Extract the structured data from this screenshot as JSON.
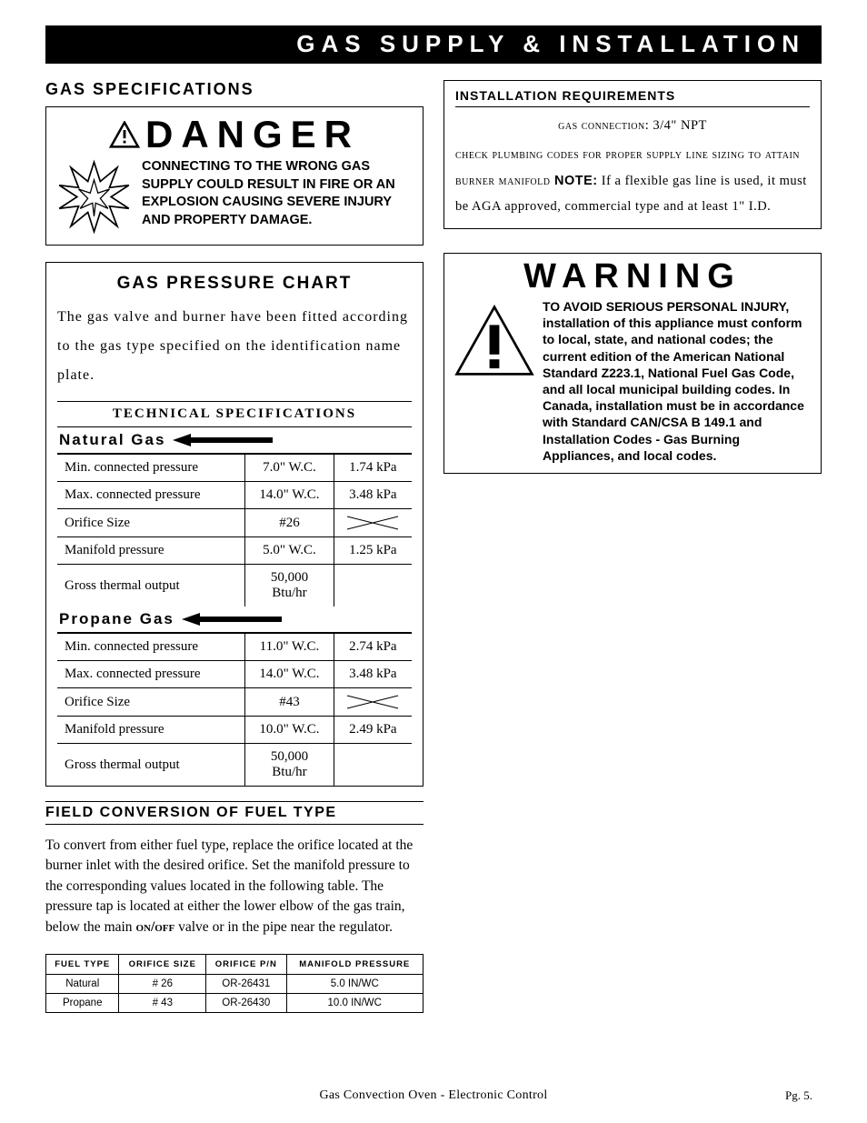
{
  "header": {
    "title": "GAS SUPPLY & INSTALLATION"
  },
  "left": {
    "specs_title": "GAS SPECIFICATIONS",
    "danger": {
      "word": "DANGER",
      "text": "CONNECTING TO THE WRONG GAS SUPPLY COULD RESULT IN FIRE OR AN EXPLOSION CAUSING SEVERE INJURY AND PROPERTY DAMAGE."
    },
    "chart": {
      "title": "GAS PRESSURE CHART",
      "intro": "The gas valve and burner have been fitted according to the gas type specified on the identification name plate.",
      "tech_label": "TECHNICAL SPECIFICATIONS",
      "natural": {
        "label": "Natural Gas",
        "rows": [
          {
            "k": "Min. connected pressure",
            "a": "7.0\" W.C.",
            "b": "1.74 kPa"
          },
          {
            "k": "Max. connected pressure",
            "a": "14.0\" W.C.",
            "b": "3.48 kPa"
          },
          {
            "k": "Orifice Size",
            "a": "#26",
            "b": "X"
          },
          {
            "k": "Manifold pressure",
            "a": "5.0\" W.C.",
            "b": "1.25 kPa"
          },
          {
            "k": "Gross thermal output",
            "a": "50,000 Btu/hr",
            "b": ""
          }
        ]
      },
      "propane": {
        "label": "Propane Gas",
        "rows": [
          {
            "k": "Min. connected pressure",
            "a": "11.0\" W.C.",
            "b": "2.74 kPa"
          },
          {
            "k": "Max. connected pressure",
            "a": "14.0\" W.C.",
            "b": "3.48 kPa"
          },
          {
            "k": "Orifice Size",
            "a": "#43",
            "b": "X"
          },
          {
            "k": "Manifold pressure",
            "a": "10.0\" W.C.",
            "b": "2.49 kPa"
          },
          {
            "k": "Gross thermal output",
            "a": "50,000 Btu/hr",
            "b": ""
          }
        ]
      }
    },
    "field": {
      "title": "FIELD CONVERSION OF FUEL TYPE",
      "text_a": "To convert from either fuel type, replace the orifice located at the burner inlet with the desired orifice. Set the manifold pressure to the corresponding values located in the following table.  The pressure tap is located at either the lower elbow of the gas train, below the main ",
      "onoff": "on/off",
      "text_b": " valve or in the pipe near the regulator.",
      "headers": [
        "FUEL TYPE",
        "ORIFICE SIZE",
        "ORIFICE P/N",
        "MANIFOLD PRESSURE"
      ],
      "rows": [
        [
          "Natural",
          "# 26",
          "OR-26431",
          "5.0 IN/WC"
        ],
        [
          "Propane",
          "# 43",
          "OR-26430",
          "10.0 IN/WC"
        ]
      ]
    }
  },
  "right": {
    "install": {
      "title": "INSTALLATION REQUIREMENTS",
      "conn_label": "gas connection:",
      "conn_val": "  3/4\" NPT",
      "line1": "check plumbing codes for proper supply line sizing to attain burner manifold",
      "note": " NOTE:",
      "line2": "  If a flexible gas line is used, it must be AGA approved, commercial type and at least 1\" I.D."
    },
    "warning": {
      "word": "WARNING",
      "text": "TO AVOID SERIOUS PERSONAL INJURY, installation of this appliance must conform to local, state, and national codes; the current edition of the American National Standard Z223.1, National Fuel Gas Code, and all local municipal building codes.  In Canada, installation must be in accordance with Standard CAN/CSA B 149.1 and Installation Codes - Gas Burning Appliances, and local codes."
    }
  },
  "footer": {
    "text": "Gas Convection Oven - Electronic Control",
    "page": "Pg. 5."
  }
}
